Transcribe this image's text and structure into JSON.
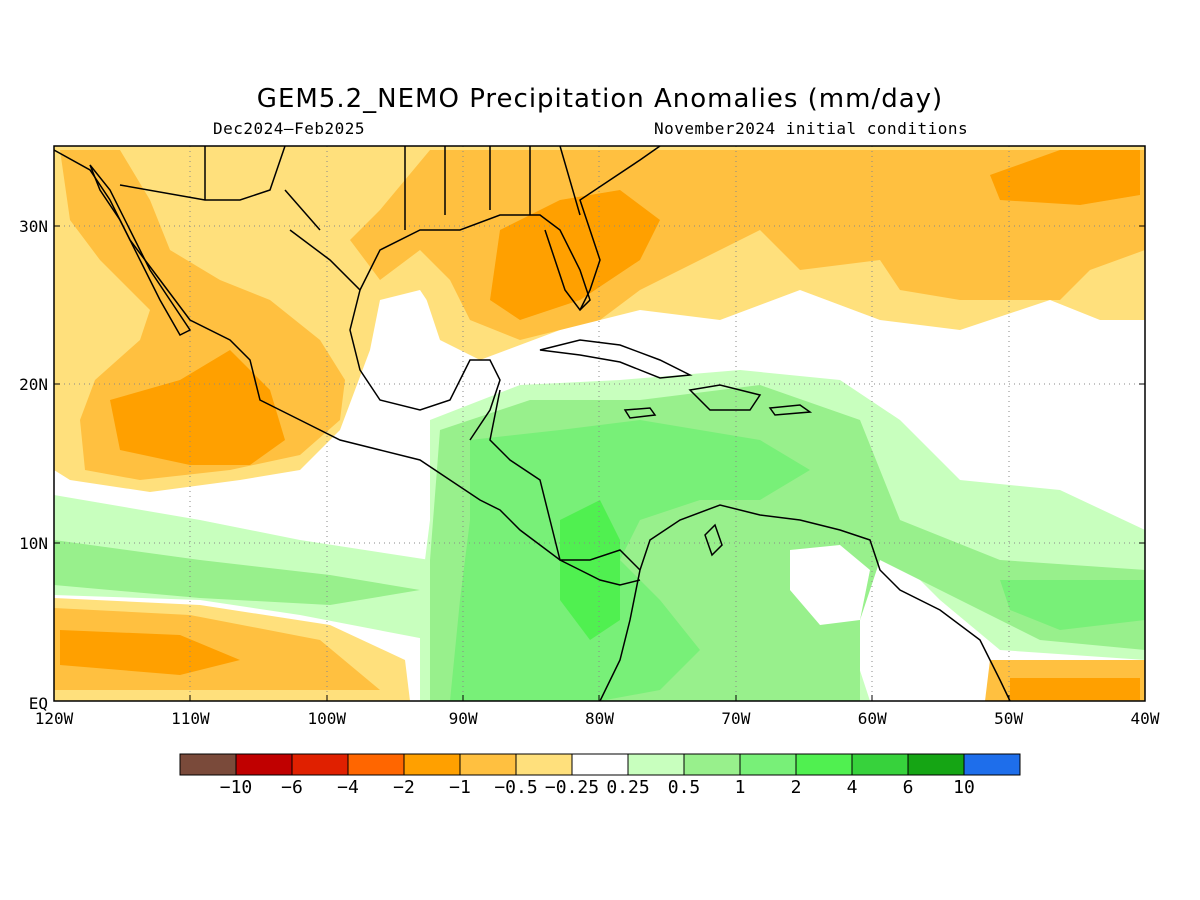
{
  "title": "GEM5.2_NEMO Precipitation Anomalies (mm/day)",
  "subtitle_left": "Dec2024–Feb2025",
  "subtitle_right": "November2024 initial conditions",
  "map": {
    "lat_labels": [
      "30N",
      "20N",
      "10N",
      "EQ"
    ],
    "lon_labels": [
      "120W",
      "110W",
      "100W",
      "90W",
      "80W",
      "70W",
      "60W",
      "50W",
      "40W"
    ],
    "grid": true
  },
  "colorbar": {
    "colors": [
      "#7a4a3a",
      "#c00000",
      "#e02000",
      "#ff6600",
      "#ffa000",
      "#ffc040",
      "#ffe07c",
      "#ffffff",
      "#c8ffbe",
      "#98f08c",
      "#78f078",
      "#50f050",
      "#37d23c",
      "#15a514",
      "#1e6eeb"
    ],
    "labels": [
      "−10",
      "−6",
      "−4",
      "−2",
      "−1",
      "−0.5",
      "−0.25",
      "0.25",
      "0.5",
      "1",
      "2",
      "4",
      "6",
      "10"
    ]
  }
}
